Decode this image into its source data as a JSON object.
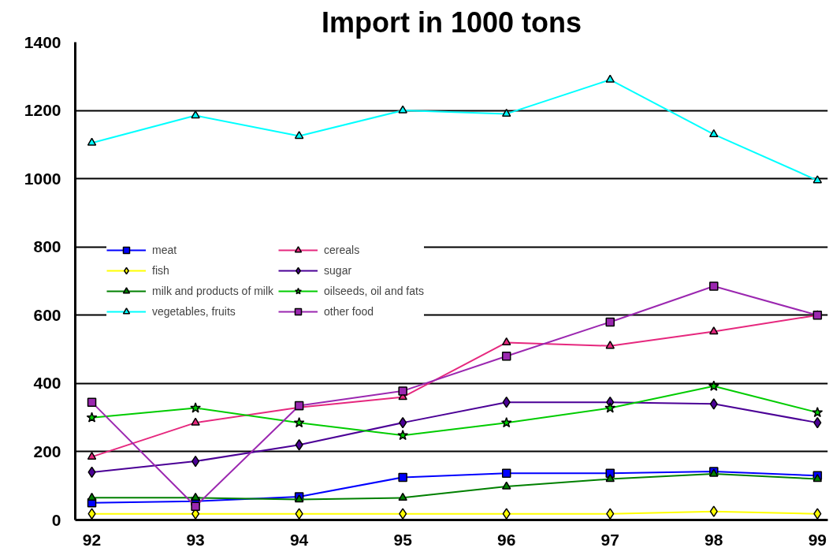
{
  "chart_data": {
    "type": "line",
    "title": "Import in 1000 tons",
    "categories": [
      "92",
      "93",
      "94",
      "95",
      "96",
      "97",
      "98",
      "99"
    ],
    "ylim": [
      0,
      1400
    ],
    "yticks": [
      0,
      200,
      400,
      600,
      800,
      1000,
      1200,
      1400
    ],
    "grid": "y",
    "legend": "left",
    "series": [
      {
        "name": "meat",
        "color": "#0000ff",
        "marker": "square",
        "values": [
          50,
          55,
          68,
          125,
          137,
          137,
          142,
          130
        ]
      },
      {
        "name": "cereals",
        "color": "#e6287e",
        "marker": "triangle",
        "values": [
          185,
          285,
          330,
          360,
          520,
          510,
          552,
          600
        ]
      },
      {
        "name": "fish",
        "color": "#ffff00",
        "marker": "diamond",
        "values": [
          18,
          18,
          18,
          18,
          18,
          18,
          25,
          18
        ]
      },
      {
        "name": "sugar",
        "color": "#4b0096",
        "marker": "diamond",
        "values": [
          140,
          172,
          220,
          285,
          345,
          345,
          340,
          285
        ]
      },
      {
        "name": "milk and products of milk",
        "color": "#008000",
        "marker": "triangle",
        "values": [
          65,
          65,
          60,
          65,
          98,
          120,
          135,
          120
        ]
      },
      {
        "name": "oilseeds, oil and fats",
        "color": "#00cc00",
        "marker": "star",
        "values": [
          300,
          328,
          285,
          248,
          285,
          328,
          392,
          315
        ]
      },
      {
        "name": "vegetables, fruits",
        "color": "#00ffff",
        "marker": "triangle",
        "values": [
          1105,
          1185,
          1125,
          1200,
          1190,
          1290,
          1130,
          995
        ]
      },
      {
        "name": "other food",
        "color": "#9b27b0",
        "marker": "square",
        "values": [
          345,
          40,
          335,
          378,
          480,
          580,
          685,
          600
        ]
      }
    ]
  }
}
